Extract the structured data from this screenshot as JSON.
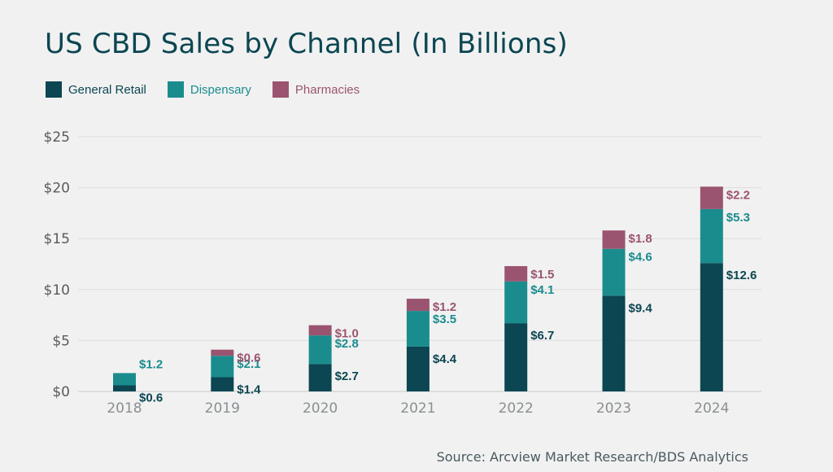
{
  "chart_data": {
    "type": "bar",
    "stacked": true,
    "title": "US CBD Sales by Channel (In Billions)",
    "categories": [
      "2018",
      "2019",
      "2020",
      "2021",
      "2022",
      "2023",
      "2024"
    ],
    "series": [
      {
        "name": "General Retail",
        "color": "#0b4652",
        "values": [
          0.6,
          1.4,
          2.7,
          4.4,
          6.7,
          9.4,
          12.6
        ],
        "labels": [
          "$0.6",
          "$1.4",
          "$2.7",
          "$4.4",
          "$6.7",
          "$9.4",
          "$12.6"
        ]
      },
      {
        "name": "Dispensary",
        "color": "#1a8c8e",
        "values": [
          1.2,
          2.1,
          2.8,
          3.5,
          4.1,
          4.6,
          5.3
        ],
        "labels": [
          "$1.2",
          "$2.1",
          "$2.8",
          "$3.5",
          "$4.1",
          "$4.6",
          "$5.3"
        ]
      },
      {
        "name": "Pharmacies",
        "color": "#9b5470",
        "values": [
          0,
          0.6,
          1.0,
          1.2,
          1.5,
          1.8,
          2.2
        ],
        "labels": [
          "",
          "$0.6",
          "$1.0",
          "$1.2",
          "$1.5",
          "$1.8",
          "$2.2"
        ]
      }
    ],
    "ylim": [
      0,
      25
    ],
    "yticks": [
      0,
      5,
      10,
      15,
      20,
      25
    ],
    "ytick_labels": [
      "$0",
      "$5",
      "$10",
      "$15",
      "$20",
      "$25"
    ],
    "grid": true,
    "legend_position": "top-left",
    "source": "Source: Arcview Market Research/BDS Analytics"
  }
}
